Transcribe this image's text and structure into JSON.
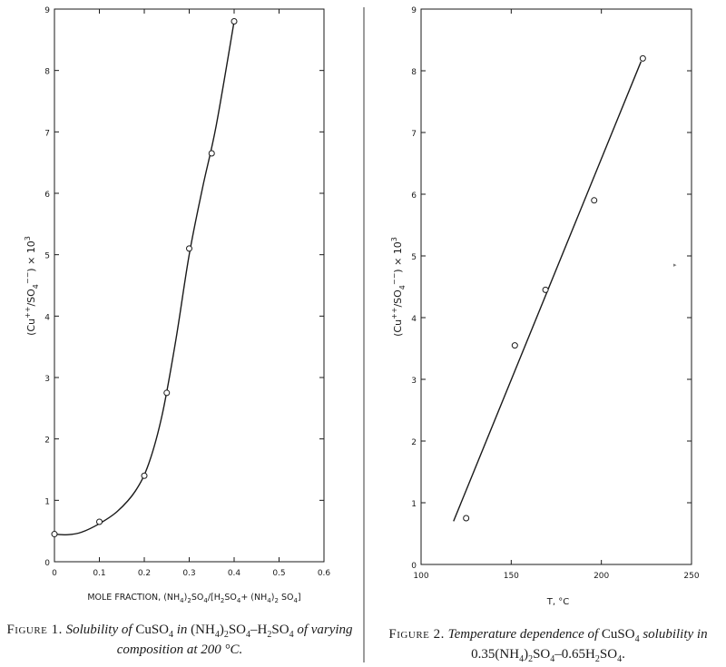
{
  "chart_data": [
    {
      "type": "scatter",
      "title": "",
      "xlabel": "MOLE FRACTION, (NH4)2SO4/[H2SO4+(NH4)2 SO4]",
      "ylabel": "(Cu++/SO4--) x 10^3",
      "xlim": [
        0,
        0.6
      ],
      "ylim": [
        0,
        9
      ],
      "xticks": [
        "0",
        "0.1",
        "0.2",
        "0.3",
        "0.4",
        "0.5",
        "0.6"
      ],
      "yticks": [
        "0",
        "1",
        "2",
        "3",
        "4",
        "5",
        "6",
        "7",
        "8",
        "9"
      ],
      "grid": false,
      "points": [
        {
          "x": 0.0,
          "y": 0.45
        },
        {
          "x": 0.1,
          "y": 0.65
        },
        {
          "x": 0.2,
          "y": 1.4
        },
        {
          "x": 0.25,
          "y": 2.75
        },
        {
          "x": 0.3,
          "y": 5.1
        },
        {
          "x": 0.35,
          "y": 6.65
        },
        {
          "x": 0.4,
          "y": 8.8
        }
      ],
      "fit_curve": [
        {
          "x": 0.0,
          "y": 0.45
        },
        {
          "x": 0.03,
          "y": 0.44
        },
        {
          "x": 0.06,
          "y": 0.48
        },
        {
          "x": 0.1,
          "y": 0.62
        },
        {
          "x": 0.14,
          "y": 0.82
        },
        {
          "x": 0.18,
          "y": 1.15
        },
        {
          "x": 0.21,
          "y": 1.6
        },
        {
          "x": 0.24,
          "y": 2.4
        },
        {
          "x": 0.27,
          "y": 3.6
        },
        {
          "x": 0.3,
          "y": 5.0
        },
        {
          "x": 0.33,
          "y": 6.1
        },
        {
          "x": 0.36,
          "y": 7.1
        },
        {
          "x": 0.4,
          "y": 8.8
        }
      ],
      "caption": {
        "lead": "Figure 1.",
        "text": "Solubility of CuSO4 in (NH4)2SO4-H2SO4 of varying composition at 200 °C."
      }
    },
    {
      "type": "scatter",
      "title": "",
      "xlabel": "T, °C",
      "ylabel": "(Cu++/SO4--) x 10^3",
      "xlim": [
        100,
        250
      ],
      "ylim": [
        0,
        9
      ],
      "xticks": [
        "100",
        "150",
        "200",
        "250"
      ],
      "yticks": [
        "0",
        "1",
        "2",
        "3",
        "4",
        "5",
        "6",
        "7",
        "8",
        "9"
      ],
      "grid": false,
      "points": [
        {
          "x": 125,
          "y": 0.75
        },
        {
          "x": 152,
          "y": 3.55
        },
        {
          "x": 169,
          "y": 4.45
        },
        {
          "x": 196,
          "y": 5.9
        },
        {
          "x": 223,
          "y": 8.2
        }
      ],
      "fit_line": [
        {
          "x": 118,
          "y": 0.7
        },
        {
          "x": 222,
          "y": 8.15
        }
      ],
      "caption": {
        "lead": "Figure 2.",
        "text": "Temperature dependence of CuSO4 solubility in 0.35(NH4)2SO4-0.65H2SO4."
      }
    }
  ],
  "captions": {
    "fig1_lead": "Figure 1.",
    "fig1_l1_a": "Solubility of",
    "fig1_l1_b": "CuSO",
    "fig1_l1_b_sub": "4",
    "fig1_l1_c": "in",
    "fig1_l1_d": "(NH",
    "fig1_l1_d_sub1": "4",
    "fig1_l1_e": ")",
    "fig1_l1_e_sub": "2",
    "fig1_l1_f": "SO",
    "fig1_l1_f_sub": "4",
    "fig1_l1_g": "–H",
    "fig1_l1_g_sub": "2",
    "fig1_l1_h": "SO",
    "fig1_l1_h_sub": "4",
    "fig1_l1_i": "of varying",
    "fig1_l2": "composition at 200 °C.",
    "fig2_lead": "Figure 2.",
    "fig2_l1_a": "Temperature dependence of",
    "fig2_l1_b": "CuSO",
    "fig2_l1_b_sub": "4",
    "fig2_l1_c": "solubility in",
    "fig2_l2_a": "0.35(NH",
    "fig2_l2_a_sub": "4",
    "fig2_l2_b": ")",
    "fig2_l2_b_sub": "2",
    "fig2_l2_c": "SO",
    "fig2_l2_c_sub": "4",
    "fig2_l2_d": "–0.65H",
    "fig2_l2_d_sub": "2",
    "fig2_l2_e": "SO",
    "fig2_l2_e_sub": "4",
    "fig2_l2_f": "."
  },
  "colors": {
    "ink": "#1a1a1a",
    "background": "#ffffff"
  }
}
